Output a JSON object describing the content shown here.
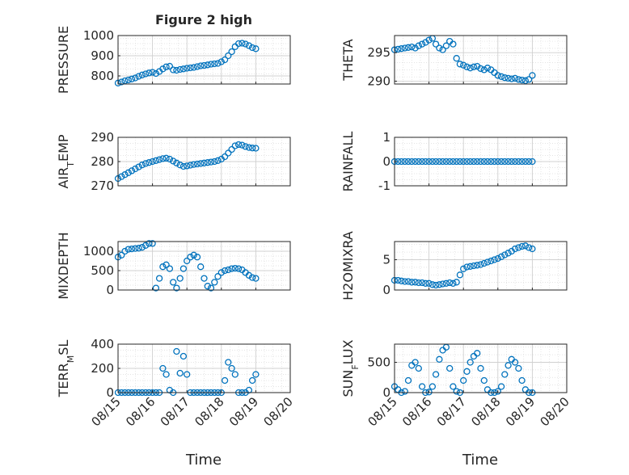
{
  "figure": {
    "title": "Figure 2 high",
    "x_axis_label": "Time",
    "x_ticks": [
      "08/15",
      "08/16",
      "08/17",
      "08/18",
      "08/19",
      "08/20"
    ],
    "marker_color": "#0072BD"
  },
  "chart_data": [
    {
      "type": "scatter",
      "ylabel_main": "PRESSURE",
      "ylabel_sub": "",
      "ylim": [
        760,
        1000
      ],
      "yticks": [
        800,
        900,
        1000
      ],
      "xlim": [
        0,
        5
      ],
      "grid": true,
      "x": [
        0.0,
        0.1,
        0.2,
        0.3,
        0.4,
        0.5,
        0.6,
        0.7,
        0.8,
        0.9,
        1.0,
        1.1,
        1.2,
        1.3,
        1.4,
        1.5,
        1.6,
        1.7,
        1.8,
        1.9,
        2.0,
        2.1,
        2.2,
        2.3,
        2.4,
        2.5,
        2.6,
        2.7,
        2.8,
        2.9,
        3.0,
        3.1,
        3.2,
        3.3,
        3.4,
        3.5,
        3.6,
        3.7,
        3.8,
        3.9,
        4.0
      ],
      "y": [
        765,
        770,
        776,
        780,
        785,
        790,
        798,
        805,
        810,
        815,
        818,
        812,
        822,
        835,
        845,
        848,
        830,
        828,
        832,
        835,
        838,
        840,
        842,
        846,
        850,
        852,
        855,
        858,
        860,
        862,
        870,
        880,
        900,
        920,
        945,
        960,
        962,
        958,
        950,
        940,
        935
      ]
    },
    {
      "type": "scatter",
      "ylabel_main": "THETA",
      "ylabel_sub": "",
      "ylim": [
        289.5,
        298
      ],
      "yticks": [
        290,
        295
      ],
      "xlim": [
        0,
        5
      ],
      "grid": true,
      "x": [
        0.0,
        0.1,
        0.2,
        0.3,
        0.4,
        0.5,
        0.6,
        0.7,
        0.8,
        0.9,
        1.0,
        1.1,
        1.2,
        1.3,
        1.4,
        1.5,
        1.6,
        1.7,
        1.8,
        1.9,
        2.0,
        2.1,
        2.2,
        2.3,
        2.4,
        2.5,
        2.6,
        2.7,
        2.8,
        2.9,
        3.0,
        3.1,
        3.2,
        3.3,
        3.4,
        3.5,
        3.6,
        3.7,
        3.8,
        3.9,
        4.0
      ],
      "y": [
        295.5,
        295.6,
        295.7,
        295.8,
        295.9,
        296.0,
        295.8,
        296.2,
        296.5,
        296.8,
        297.2,
        297.5,
        296.5,
        295.8,
        295.5,
        296.2,
        297.0,
        296.5,
        294.0,
        293.0,
        292.8,
        292.5,
        292.3,
        292.5,
        292.6,
        292.2,
        292.0,
        292.3,
        292.0,
        291.5,
        291.0,
        290.8,
        290.6,
        290.5,
        290.4,
        290.5,
        290.3,
        290.2,
        290.1,
        290.3,
        291.0
      ]
    },
    {
      "type": "scatter",
      "ylabel_main": "AIR",
      "ylabel_sub": "T",
      "ylabel_rest": "EMP",
      "ylim": [
        270,
        290
      ],
      "yticks": [
        270,
        280,
        290
      ],
      "xlim": [
        0,
        5
      ],
      "grid": true,
      "x": [
        0.0,
        0.1,
        0.2,
        0.3,
        0.4,
        0.5,
        0.6,
        0.7,
        0.8,
        0.9,
        1.0,
        1.1,
        1.2,
        1.3,
        1.4,
        1.5,
        1.6,
        1.7,
        1.8,
        1.9,
        2.0,
        2.1,
        2.2,
        2.3,
        2.4,
        2.5,
        2.6,
        2.7,
        2.8,
        2.9,
        3.0,
        3.1,
        3.2,
        3.3,
        3.4,
        3.5,
        3.6,
        3.7,
        3.8,
        3.9,
        4.0
      ],
      "y": [
        273.0,
        273.8,
        274.6,
        275.4,
        276.2,
        277.0,
        277.8,
        278.6,
        279.2,
        279.6,
        280.0,
        280.4,
        280.8,
        281.2,
        281.4,
        281.0,
        280.2,
        279.4,
        278.6,
        278.0,
        278.2,
        278.5,
        278.8,
        279.0,
        279.2,
        279.4,
        279.6,
        279.8,
        280.0,
        280.4,
        281.0,
        282.0,
        283.5,
        285.0,
        286.5,
        287.0,
        286.8,
        286.2,
        285.8,
        285.6,
        285.5
      ]
    },
    {
      "type": "scatter",
      "ylabel_main": "RAINFALL",
      "ylabel_sub": "",
      "ylim": [
        -1,
        1
      ],
      "yticks": [
        -1,
        0,
        1
      ],
      "xlim": [
        0,
        5
      ],
      "grid": true,
      "x": [
        0.0,
        0.1,
        0.2,
        0.3,
        0.4,
        0.5,
        0.6,
        0.7,
        0.8,
        0.9,
        1.0,
        1.1,
        1.2,
        1.3,
        1.4,
        1.5,
        1.6,
        1.7,
        1.8,
        1.9,
        2.0,
        2.1,
        2.2,
        2.3,
        2.4,
        2.5,
        2.6,
        2.7,
        2.8,
        2.9,
        3.0,
        3.1,
        3.2,
        3.3,
        3.4,
        3.5,
        3.6,
        3.7,
        3.8,
        3.9,
        4.0
      ],
      "y": [
        0,
        0,
        0,
        0,
        0,
        0,
        0,
        0,
        0,
        0,
        0,
        0,
        0,
        0,
        0,
        0,
        0,
        0,
        0,
        0,
        0,
        0,
        0,
        0,
        0,
        0,
        0,
        0,
        0,
        0,
        0,
        0,
        0,
        0,
        0,
        0,
        0,
        0,
        0,
        0,
        0
      ]
    },
    {
      "type": "scatter",
      "ylabel_main": "MIXDEPTH",
      "ylabel_sub": "",
      "ylim": [
        0,
        1250
      ],
      "yticks": [
        0,
        500,
        1000
      ],
      "xlim": [
        0,
        5
      ],
      "grid": true,
      "x": [
        0.0,
        0.1,
        0.2,
        0.3,
        0.4,
        0.5,
        0.6,
        0.7,
        0.8,
        0.9,
        1.0,
        1.1,
        1.2,
        1.3,
        1.4,
        1.5,
        1.6,
        1.7,
        1.8,
        1.9,
        2.0,
        2.1,
        2.2,
        2.3,
        2.4,
        2.5,
        2.6,
        2.7,
        2.8,
        2.9,
        3.0,
        3.1,
        3.2,
        3.3,
        3.4,
        3.5,
        3.6,
        3.7,
        3.8,
        3.9,
        4.0
      ],
      "y": [
        850,
        900,
        1000,
        1050,
        1060,
        1070,
        1080,
        1100,
        1150,
        1200,
        1200,
        50,
        300,
        600,
        650,
        550,
        200,
        50,
        300,
        550,
        750,
        850,
        900,
        850,
        600,
        300,
        100,
        50,
        200,
        350,
        450,
        500,
        520,
        550,
        560,
        550,
        520,
        450,
        380,
        320,
        300
      ]
    },
    {
      "type": "scatter",
      "ylabel_main": "H2OMIXRA",
      "ylabel_sub": "",
      "ylim": [
        0,
        8
      ],
      "yticks": [
        0,
        5
      ],
      "xlim": [
        0,
        5
      ],
      "grid": true,
      "x": [
        0.0,
        0.1,
        0.2,
        0.3,
        0.4,
        0.5,
        0.6,
        0.7,
        0.8,
        0.9,
        1.0,
        1.1,
        1.2,
        1.3,
        1.4,
        1.5,
        1.6,
        1.7,
        1.8,
        1.9,
        2.0,
        2.1,
        2.2,
        2.3,
        2.4,
        2.5,
        2.6,
        2.7,
        2.8,
        2.9,
        3.0,
        3.1,
        3.2,
        3.3,
        3.4,
        3.5,
        3.6,
        3.7,
        3.8,
        3.9,
        4.0
      ],
      "y": [
        1.6,
        1.6,
        1.5,
        1.4,
        1.4,
        1.3,
        1.3,
        1.2,
        1.2,
        1.1,
        1.1,
        0.9,
        0.8,
        0.9,
        1.0,
        1.1,
        1.2,
        1.1,
        1.3,
        2.5,
        3.5,
        3.8,
        3.9,
        4.0,
        4.1,
        4.2,
        4.4,
        4.6,
        4.8,
        5.0,
        5.2,
        5.5,
        5.8,
        6.1,
        6.4,
        6.8,
        7.0,
        7.2,
        7.3,
        7.0,
        6.8
      ]
    },
    {
      "type": "scatter",
      "ylabel_main": "TERR",
      "ylabel_sub": "M",
      "ylabel_rest": "SL",
      "ylim": [
        0,
        400
      ],
      "yticks": [
        0,
        200,
        400
      ],
      "xlim": [
        0,
        5
      ],
      "grid": true,
      "x": [
        0.0,
        0.1,
        0.2,
        0.3,
        0.4,
        0.5,
        0.6,
        0.7,
        0.8,
        0.9,
        1.0,
        1.1,
        1.2,
        1.3,
        1.4,
        1.5,
        1.6,
        1.7,
        1.8,
        1.9,
        2.0,
        2.1,
        2.2,
        2.3,
        2.4,
        2.5,
        2.6,
        2.7,
        2.8,
        2.9,
        3.0,
        3.1,
        3.2,
        3.3,
        3.4,
        3.5,
        3.6,
        3.7,
        3.8,
        3.9,
        4.0
      ],
      "y": [
        0,
        0,
        0,
        0,
        0,
        0,
        0,
        0,
        0,
        0,
        0,
        0,
        0,
        200,
        150,
        20,
        0,
        340,
        160,
        300,
        150,
        0,
        0,
        0,
        0,
        0,
        0,
        0,
        0,
        0,
        0,
        100,
        250,
        200,
        150,
        0,
        0,
        0,
        20,
        100,
        150
      ]
    },
    {
      "type": "scatter",
      "ylabel_main": "SUN",
      "ylabel_sub": "F",
      "ylabel_rest": "LUX",
      "ylim": [
        0,
        800
      ],
      "yticks": [
        0,
        500
      ],
      "xlim": [
        0,
        5
      ],
      "grid": true,
      "x": [
        0.0,
        0.1,
        0.2,
        0.3,
        0.4,
        0.5,
        0.6,
        0.7,
        0.8,
        0.9,
        1.0,
        1.1,
        1.2,
        1.3,
        1.4,
        1.5,
        1.6,
        1.7,
        1.8,
        1.9,
        2.0,
        2.1,
        2.2,
        2.3,
        2.4,
        2.5,
        2.6,
        2.7,
        2.8,
        2.9,
        3.0,
        3.1,
        3.2,
        3.3,
        3.4,
        3.5,
        3.6,
        3.7,
        3.8,
        3.9,
        4.0
      ],
      "y": [
        100,
        50,
        0,
        20,
        200,
        450,
        500,
        400,
        100,
        0,
        10,
        100,
        300,
        550,
        700,
        750,
        400,
        100,
        20,
        0,
        200,
        350,
        500,
        600,
        650,
        400,
        200,
        50,
        0,
        0,
        20,
        100,
        300,
        450,
        550,
        500,
        400,
        200,
        50,
        0,
        0
      ]
    }
  ]
}
